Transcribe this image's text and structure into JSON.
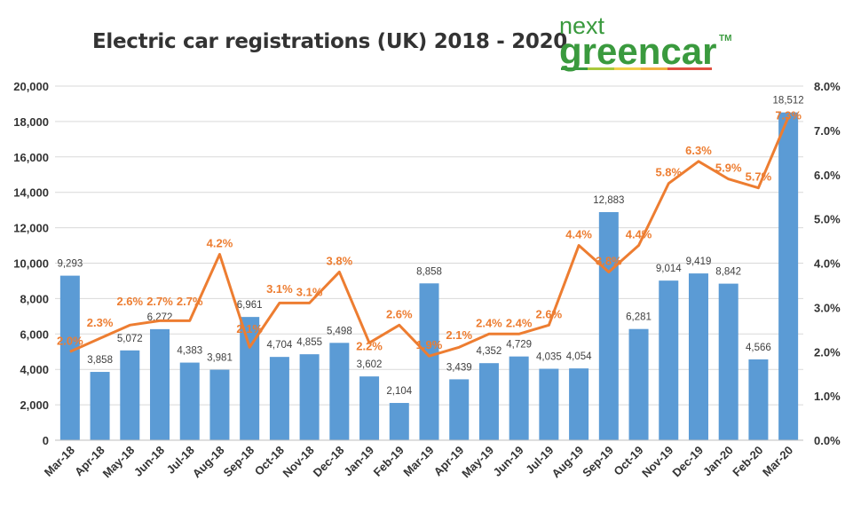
{
  "logo": {
    "line1": "next",
    "line2": "greencar",
    "tm": "™"
  },
  "chart_data": {
    "type": "bar+line",
    "title": "Electric car registrations (UK) 2018 - 2020",
    "categories": [
      "Mar-18",
      "Apr-18",
      "May-18",
      "Jun-18",
      "Jul-18",
      "Aug-18",
      "Sep-18",
      "Oct-18",
      "Nov-18",
      "Dec-18",
      "Jan-19",
      "Feb-19",
      "Mar-19",
      "Apr-19",
      "May-19",
      "Jun-19",
      "Jul-19",
      "Aug-19",
      "Sep-19",
      "Oct-19",
      "Nov-19",
      "Dec-19",
      "Jan-20",
      "Feb-20",
      "Mar-20"
    ],
    "series": [
      {
        "type": "bar",
        "axis": "left",
        "color": "#5b9bd5",
        "values": [
          9293,
          3858,
          5072,
          6272,
          4383,
          3981,
          6961,
          4704,
          4855,
          5498,
          3602,
          2104,
          8858,
          3439,
          4352,
          4729,
          4035,
          4054,
          12883,
          6281,
          9014,
          9419,
          8842,
          4566,
          18512
        ]
      },
      {
        "type": "line",
        "axis": "right",
        "color": "#ed7d31",
        "values": [
          2.0,
          2.3,
          2.6,
          2.7,
          2.7,
          4.2,
          2.1,
          3.1,
          3.1,
          3.8,
          2.2,
          2.6,
          1.9,
          2.1,
          2.4,
          2.4,
          2.6,
          4.4,
          3.8,
          4.4,
          5.8,
          6.3,
          5.9,
          5.7,
          7.3
        ]
      }
    ],
    "ylim": [
      0,
      20000
    ],
    "y_ticks": [
      "0",
      "2,000",
      "4,000",
      "6,000",
      "8,000",
      "10,000",
      "12,000",
      "14,000",
      "16,000",
      "18,000",
      "20,000"
    ],
    "y2lim": [
      0,
      8
    ],
    "y2_ticks": [
      "0.0%",
      "1.0%",
      "2.0%",
      "3.0%",
      "4.0%",
      "5.0%",
      "6.0%",
      "7.0%",
      "8.0%"
    ],
    "grid": true,
    "legend": "none"
  }
}
